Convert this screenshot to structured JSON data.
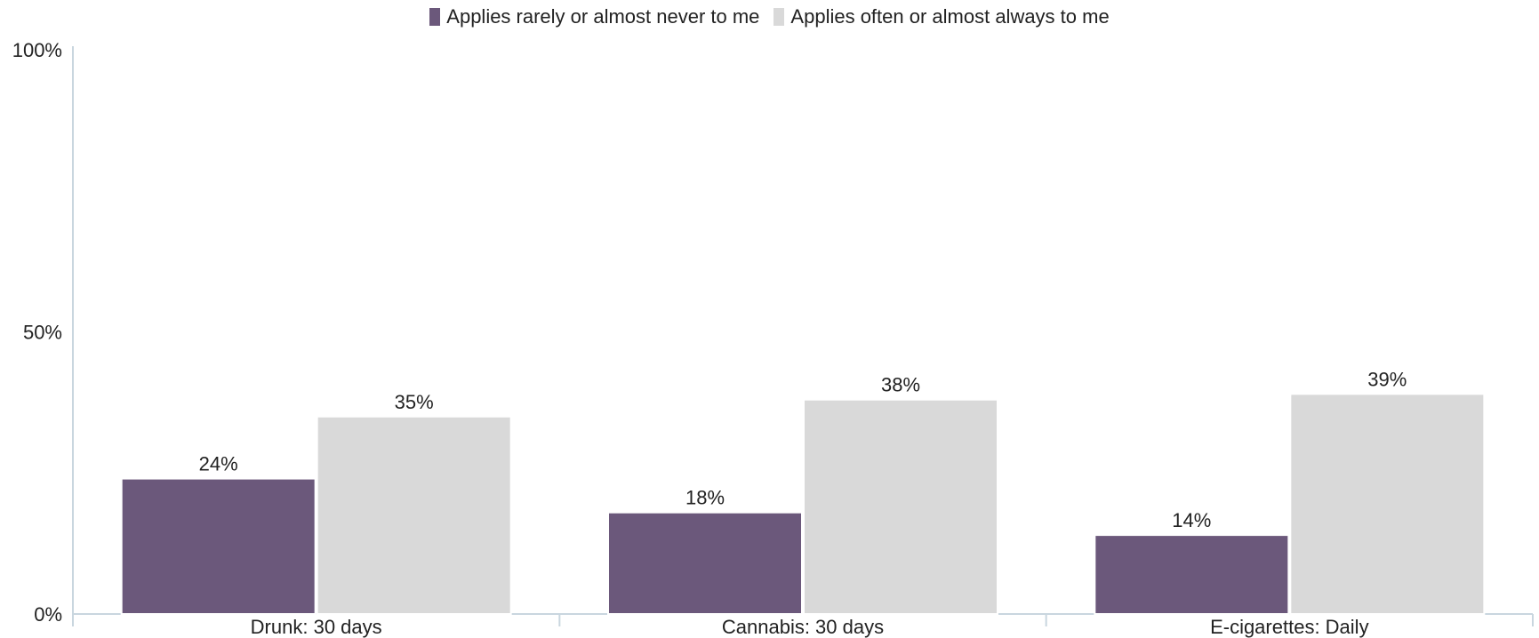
{
  "chart_data": {
    "type": "bar",
    "categories": [
      "Drunk: 30 days",
      "Cannabis: 30 days",
      "E-cigarettes: Daily"
    ],
    "series": [
      {
        "name": "Applies rarely or almost never to me",
        "values": [
          24,
          18,
          14
        ],
        "color": "#6b587b"
      },
      {
        "name": "Applies often or almost always to me",
        "values": [
          35,
          38,
          39
        ],
        "color": "#d9d9d9"
      }
    ],
    "data_labels": [
      [
        "24%",
        "18%",
        "14%"
      ],
      [
        "35%",
        "38%",
        "39%"
      ]
    ],
    "y_ticks": [
      {
        "value": 0,
        "label": "0%"
      },
      {
        "value": 50,
        "label": "50%"
      },
      {
        "value": 100,
        "label": "100%"
      }
    ],
    "ylim": [
      0,
      100
    ],
    "legend_position": "top-center",
    "grid": false,
    "axis_color": "#c9d6df"
  }
}
